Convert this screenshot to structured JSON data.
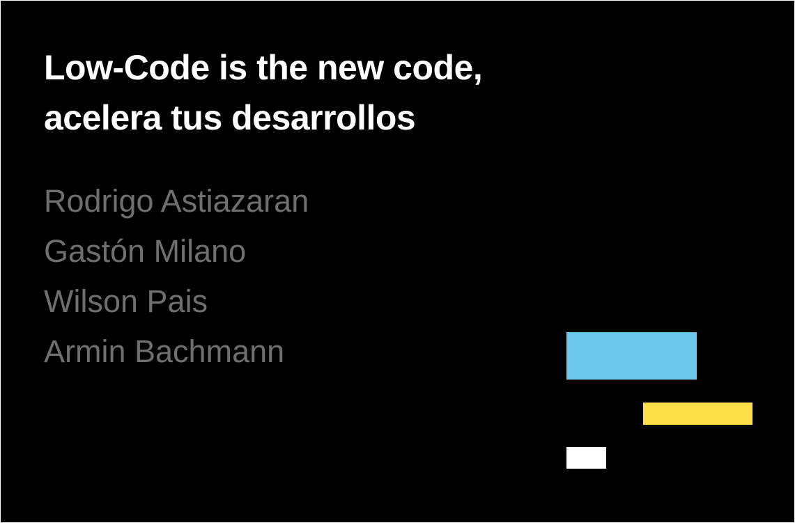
{
  "title": {
    "lines": [
      "Low-Code is the new code,",
      "acelera tus desarrollos"
    ]
  },
  "speakers": [
    "Rodrigo Astiazaran",
    "Gastón Milano",
    "Wilson Pais",
    "Armin Bachmann"
  ]
}
